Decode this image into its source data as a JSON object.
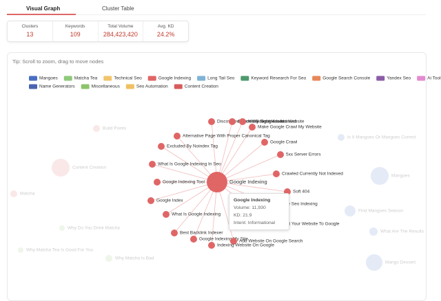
{
  "tabs": [
    "Visual Graph",
    "Cluster Table"
  ],
  "stats": [
    {
      "label": "Clusters",
      "value": "13"
    },
    {
      "label": "Keywords",
      "value": "109"
    },
    {
      "label": "Total Volume",
      "value": "284,423,420"
    },
    {
      "label": "Avg. KD",
      "value": "24.2%"
    }
  ],
  "graph": {
    "tip": "Tip: Scroll to zoom, drag to move nodes",
    "legend": [
      {
        "name": "Mangoes",
        "color": "#4a6fc2"
      },
      {
        "name": "Matcha Tea",
        "color": "#8fc97a"
      },
      {
        "name": "Technical Seo",
        "color": "#f2c46b"
      },
      {
        "name": "Google Indexing",
        "color": "#e06666"
      },
      {
        "name": "Long Tail Seo",
        "color": "#7fb3d5"
      },
      {
        "name": "Keyword Research For Seo",
        "color": "#4e9a6e"
      },
      {
        "name": "Google Search Console",
        "color": "#e8875a"
      },
      {
        "name": "Yandex Seo",
        "color": "#8b5ca8"
      },
      {
        "name": "Ai Tools",
        "color": "#e48bd0"
      },
      {
        "name": "Name Generators",
        "color": "#4a64b0"
      },
      {
        "name": "Miscellaneous",
        "color": "#8cc46b"
      },
      {
        "name": "Seo Automation",
        "color": "#f0c060"
      },
      {
        "name": "Content Creation",
        "color": "#d95b5b"
      }
    ],
    "center": "Google Indexing",
    "nodes": [
      "Discovered Currently Not Indexed",
      "Check If Google Has Indexed",
      "Make Google Index Website",
      "Make Google Crawl My Website",
      "Alternative Page With Proper Canonical Tag",
      "Google Crawl",
      "Excluded By Noindex Tag",
      "5xx Server Errors",
      "What Is Google Indexing In Seo",
      "Crawled Currently Not Indexed",
      "Google Indexing Tool",
      "Soft 404",
      "Google Index",
      "Google Seo Indexing",
      "What Is Google Indexing",
      "Submit Your Website To Google",
      "Best Backlink Indexer",
      "Google Indexing My Site",
      "Add Website On Google Search",
      "Indexing Website On Google"
    ],
    "faded": [
      "Build Points",
      "Content Creation",
      "Matcha",
      "Why Do You Drink Matcha",
      "Why Matcha Is Bad",
      "Why Matcha Tea Is Good For You",
      "Is It Mangoes Or Mangoes Correct",
      "Mangoes",
      "Find Mangoes Season",
      "What Are The Results",
      "Mango Dessert"
    ],
    "tooltip": {
      "title": "Google Indexing",
      "lines": [
        "Volume: 11,930",
        "KD: 21.9",
        "Intent: Informational"
      ]
    }
  }
}
